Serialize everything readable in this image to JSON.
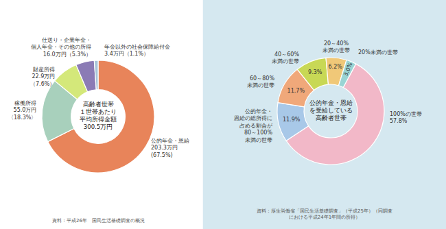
{
  "chart_data": [
    {
      "type": "pie",
      "categories": [
        "公的年金・恩給\n203.3万円\n(67.5%)",
        "稼働所得\n55.0万円\n〈18.3%〉",
        "財産所得\n22.9万円\n（7.6%）",
        "仕送り・企業年金・\n個人年金・その他の所得\n16.0万円（5.3%）",
        "年金以外の社会保障給付金\n3.4万円（1.1%）"
      ],
      "values": [
        67.5,
        18.3,
        7.6,
        5.3,
        1.1
      ],
      "colors": [
        "#E8845A",
        "#A8D0BC",
        "#D4E87A",
        "#8B7BB5",
        "#A8C4D8"
      ],
      "annotations": [
        "高齢者世帯\n１世帯あたり\n平均所得金額\n300.5万円",
        "資料：平成26年　国民生活基礎調査の概況"
      ]
    },
    {
      "type": "pie",
      "categories": [
        "100%の世帯\n57.8%",
        "公的年金・\n恩給の総所得に\n占める割合が\n80～100%\n未満の世帯",
        "60～80%\n未満の世帯",
        "40～60%\n未満の世帯",
        "20～40%\n未満の世帯",
        "20%未満の世帯"
      ],
      "values": [
        57.8,
        11.9,
        11.7,
        9.3,
        6.2,
        3.0
      ],
      "colors": [
        "#F2B8C8",
        "#A8C8E8",
        "#F0A87A",
        "#C8D855",
        "#F0C878",
        "#9AD4D4"
      ],
      "data_labels": true,
      "value_labels": [
        null,
        "11.9%",
        "11.7%",
        "9.3%",
        "6.2%",
        "3.0%"
      ],
      "annotations": [
        "公的年金・恩給\nを受給している\n高齢者世帯",
        "資料：厚生労働省「国民生活基礎調査」（平成25年）（同調査\nにおける平成24年1年間の所得）"
      ]
    }
  ]
}
